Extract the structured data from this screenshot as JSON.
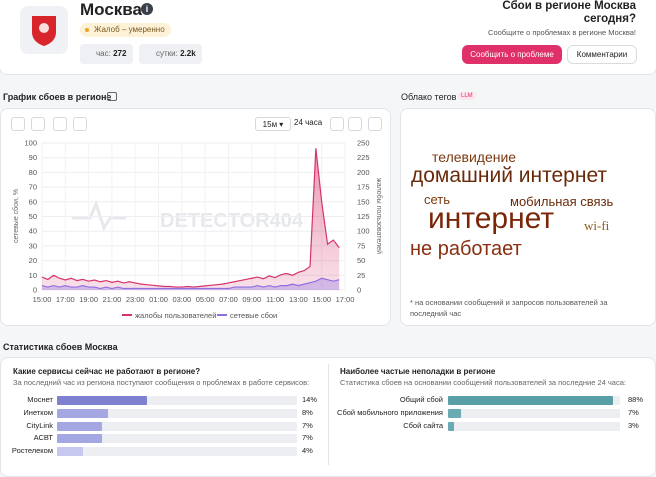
{
  "header": {
    "title": "Москва",
    "badge": "Жалоб – умеренно",
    "stats": [
      {
        "label": "час:",
        "value": "272"
      },
      {
        "label": "сутки:",
        "value": "2.2k"
      }
    ],
    "cta_title": "Сбои в регионе Москва сегодня?",
    "cta_subtitle": "Сообщите о проблемах в регионе Москва!",
    "buttons": [
      "Сообщить о проблеме",
      "Комментарии"
    ]
  },
  "chart_section": {
    "title": "График сбоев в регионе",
    "controls": [
      "15м",
      "24 часа"
    ]
  },
  "chart_data": {
    "type": "line",
    "watermark": "DETECTOR404",
    "grid": true,
    "categories": [
      "15:00",
      null,
      null,
      null,
      "17:00",
      null,
      null,
      null,
      "19:00",
      null,
      null,
      null,
      "21:00",
      null,
      null,
      null,
      "23:00",
      null,
      null,
      null,
      "01:00",
      null,
      null,
      null,
      "03:00",
      null,
      null,
      null,
      "05:00",
      null,
      null,
      null,
      "07:00",
      null,
      null,
      null,
      "09:00",
      null,
      null,
      null,
      "11:00",
      null,
      null,
      null,
      "13:00",
      null,
      null,
      null,
      "15:00",
      null,
      null,
      null,
      "17:00"
    ],
    "series": [
      {
        "name": "жалобы пользователей",
        "color": "#d6336c",
        "axis": "y2",
        "values": [
          22,
          18,
          25,
          20,
          17,
          20,
          16,
          18,
          15,
          17,
          14,
          16,
          13,
          15,
          12,
          14,
          12,
          10,
          9,
          8,
          7,
          6,
          6,
          5,
          5,
          6,
          5,
          6,
          7,
          8,
          9,
          10,
          12,
          14,
          16,
          18,
          20,
          22,
          19,
          24,
          21,
          26,
          28,
          25,
          30,
          33,
          40,
          241,
          150,
          78,
          85,
          72,
          null
        ]
      },
      {
        "name": "сетевые сбои",
        "color": "#8f6fe0",
        "values": [
          3,
          2,
          3,
          2,
          3,
          2,
          2,
          3,
          2,
          2,
          1,
          2,
          1,
          2,
          1,
          1,
          1,
          1,
          1,
          1,
          1,
          1,
          1,
          1,
          1,
          1,
          1,
          1,
          1,
          1,
          1,
          1,
          1,
          2,
          2,
          2,
          2,
          3,
          2,
          3,
          2,
          3,
          3,
          4,
          3,
          4,
          5,
          6,
          8,
          7,
          6,
          7,
          null
        ]
      }
    ],
    "ylabel": "сетевые сбои, %",
    "y2label": "жалобы пользователей",
    "ylim": [
      0,
      100
    ],
    "yticks": [
      0,
      10,
      20,
      30,
      40,
      50,
      60,
      70,
      80,
      90,
      100
    ],
    "y2lim": [
      0,
      250
    ],
    "y2ticks": [
      0,
      25,
      50,
      75,
      100,
      125,
      150,
      175,
      200,
      225,
      250
    ]
  },
  "tag_cloud": {
    "title": "Облако тегов",
    "badge": "LLM",
    "tags": [
      "телевидение",
      "домашний интернет",
      "сеть",
      "мобильная связь",
      "интернет",
      "wi-fi",
      "не работает"
    ],
    "note": "* на основании сообщений и запросов пользователей за последний час"
  },
  "stats": {
    "title": "Статистика сбоев Москва",
    "panels": [
      {
        "title": "Какие сервисы сейчас не работают в регионе?",
        "subtitle": "За последний час из региона поступают сообщения о проблемах в работе сервисов:",
        "rows": [
          {
            "name": "Моснет",
            "value": 14,
            "value_label": "14%"
          },
          {
            "name": "Инетком",
            "value": 8,
            "value_label": "8%"
          },
          {
            "name": "CityLink",
            "value": 7,
            "value_label": "7%"
          },
          {
            "name": "АСВТ",
            "value": 7,
            "value_label": "7%"
          },
          {
            "name": "Ростелеком",
            "value": 4,
            "value_label": "4%"
          }
        ]
      },
      {
        "title": "Наиболее частые неполадки в регионе",
        "subtitle": "Статистика сбоев на основании сообщений пользователей за последние 24 часа:",
        "rows": [
          {
            "name": "Общий сбой",
            "value": 88,
            "value_label": "88%"
          },
          {
            "name": "Сбой мобильного приложения",
            "value": 7,
            "value_label": "7%"
          },
          {
            "name": "Сбой сайта",
            "value": 3,
            "value_label": "3%"
          }
        ]
      }
    ]
  }
}
